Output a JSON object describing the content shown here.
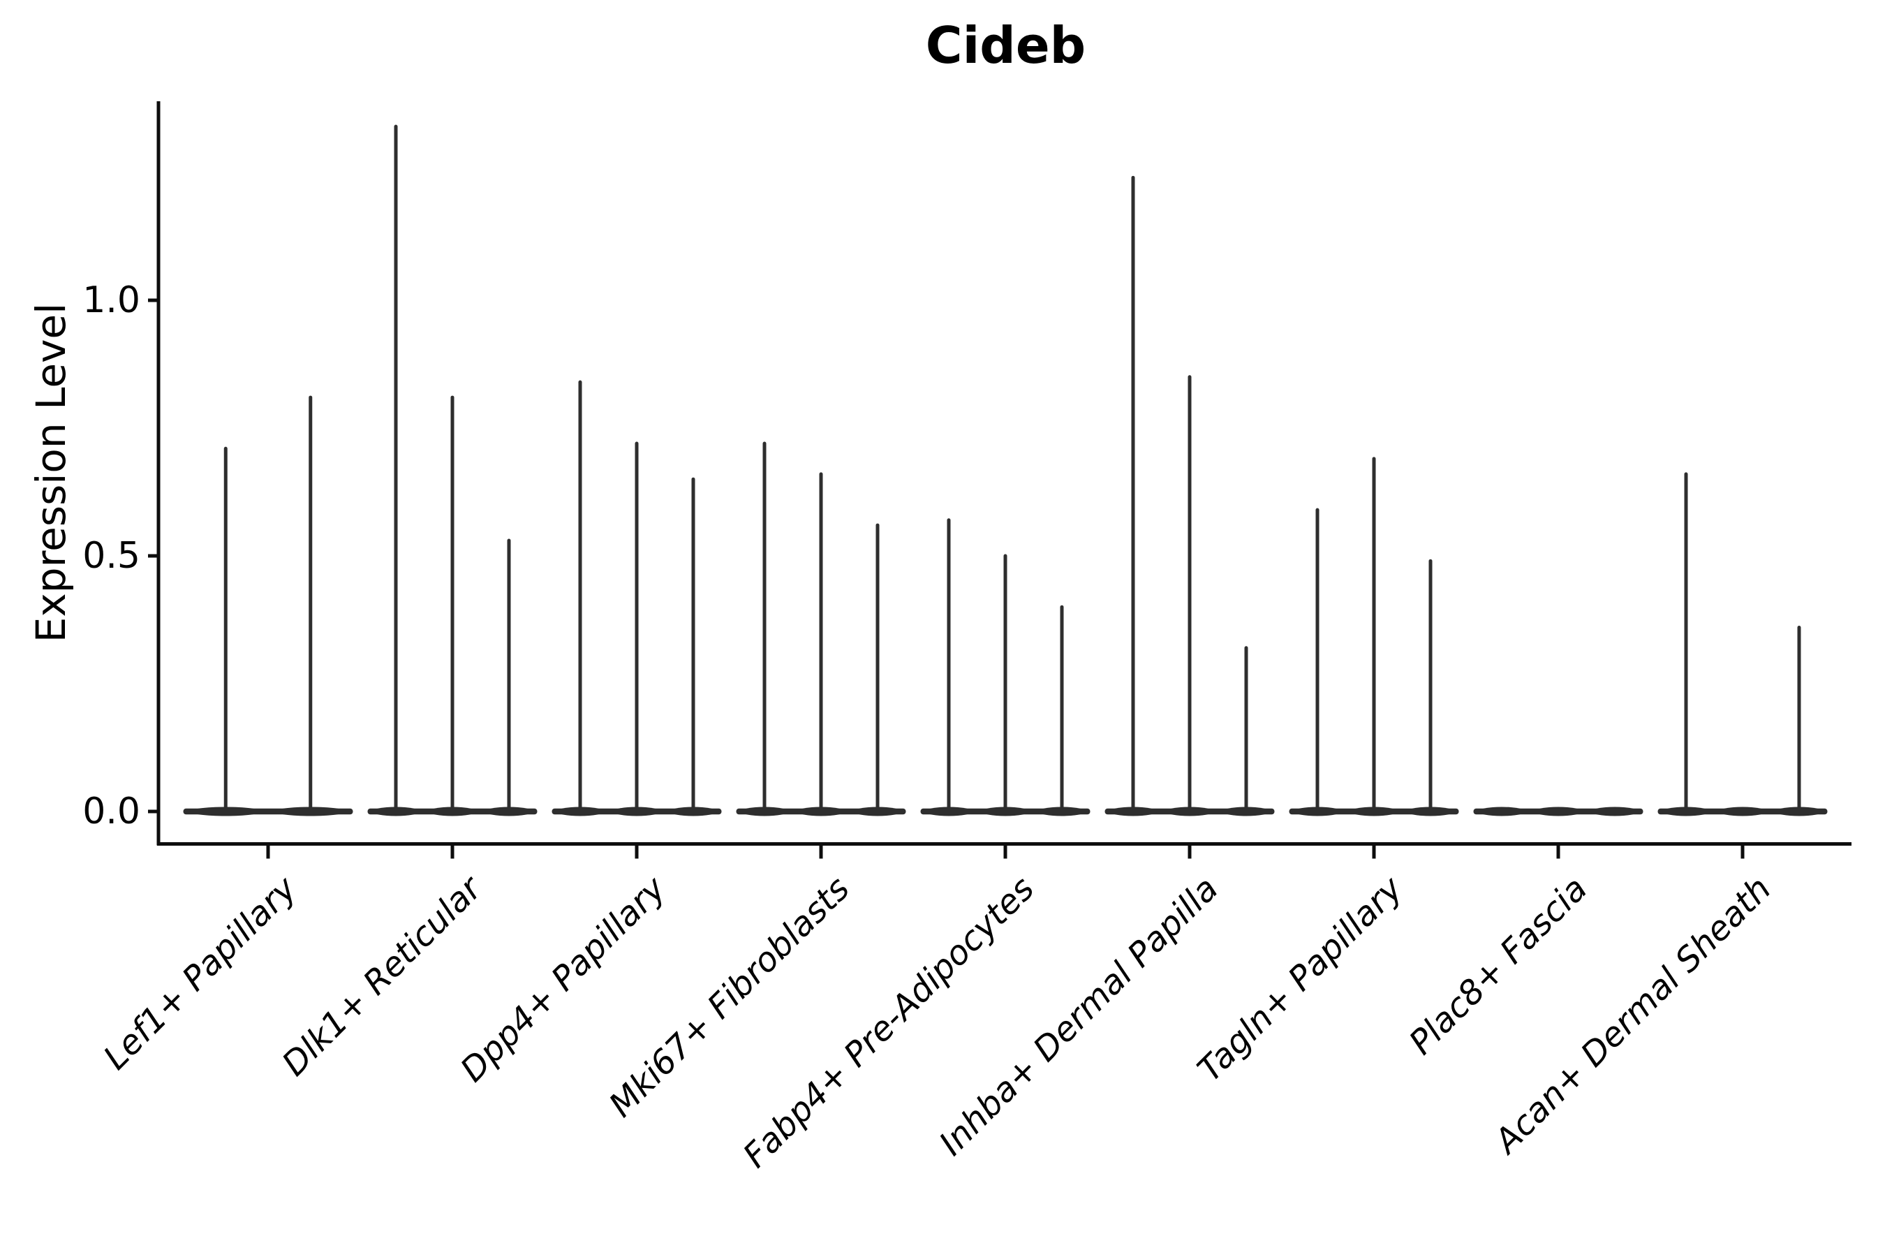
{
  "chart_data": {
    "type": "violin",
    "title": "Cideb",
    "ylabel": "Expression Level",
    "xlabel": "",
    "yticks": [
      {
        "value": 0.0,
        "label": "0.0"
      },
      {
        "value": 0.5,
        "label": "0.5"
      },
      {
        "value": 1.0,
        "label": "1.0"
      }
    ],
    "ylim": [
      -0.07,
      1.39
    ],
    "legend": "none",
    "grid": false,
    "categories": [
      "Lef1+ Papillary",
      "Dlk1+ Reticular",
      "Dpp4+ Papillary",
      "Mki67+ Fibroblasts",
      "Fabp4+ Pre-Adipocytes",
      "Inhba+ Dermal Papilla",
      "Tagln+ Papillary",
      "Plac8+ Fascia",
      "Acan+ Dermal Sheath"
    ],
    "groups": [
      {
        "category": "Lef1+ Papillary",
        "violin_max_expression": [
          0.71,
          0.81
        ]
      },
      {
        "category": "Dlk1+ Reticular",
        "violin_max_expression": [
          1.34,
          0.81,
          0.53
        ]
      },
      {
        "category": "Dpp4+ Papillary",
        "violin_max_expression": [
          0.84,
          0.72,
          0.65
        ]
      },
      {
        "category": "Mki67+ Fibroblasts",
        "violin_max_expression": [
          0.72,
          0.66,
          0.56
        ]
      },
      {
        "category": "Fabp4+ Pre-Adipocytes",
        "violin_max_expression": [
          0.57,
          0.5,
          0.4
        ]
      },
      {
        "category": "Inhba+ Dermal Papilla",
        "violin_max_expression": [
          1.24,
          0.85,
          0.32
        ]
      },
      {
        "category": "Tagln+ Papillary",
        "violin_max_expression": [
          0.59,
          0.69,
          0.49
        ]
      },
      {
        "category": "Plac8+ Fascia",
        "violin_max_expression": [
          0.0,
          0.0,
          0.0
        ]
      },
      {
        "category": "Acan+ Dermal Sheath",
        "violin_max_expression": [
          0.66,
          0.0,
          0.36
        ]
      }
    ],
    "description": "Violin plot of Cideb expression per fibroblast cluster; most mass at 0 giving flat violins with thin upper tails. Each category holds 2-3 sample violins.",
    "colors": {
      "violin_ink": "#2e2e2e",
      "axis": "#0d0d0d",
      "text": "#000000",
      "background": "#ffffff"
    }
  }
}
